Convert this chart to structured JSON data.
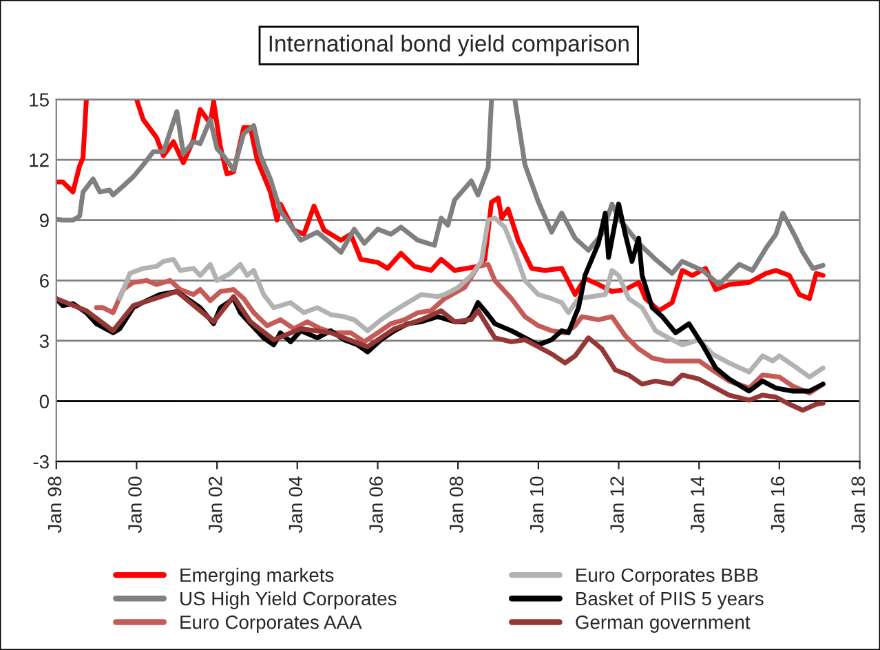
{
  "chart_data": {
    "type": "line",
    "title": "International bond yield comparison",
    "xlim": [
      "1998-01",
      "2018-01"
    ],
    "xticks": [
      {
        "value": "1998-01",
        "label": "Jan 98"
      },
      {
        "value": "2000-01",
        "label": "Jan 00"
      },
      {
        "value": "2002-01",
        "label": "Jan 02"
      },
      {
        "value": "2004-01",
        "label": "Jan 04"
      },
      {
        "value": "2006-01",
        "label": "Jan 06"
      },
      {
        "value": "2008-01",
        "label": "Jan 08"
      },
      {
        "value": "2010-01",
        "label": "Jan 10"
      },
      {
        "value": "2012-01",
        "label": "Jan 12"
      },
      {
        "value": "2014-01",
        "label": "Jan 14"
      },
      {
        "value": "2016-01",
        "label": "Jan 16"
      },
      {
        "value": "2018-01",
        "label": "Jan 18"
      }
    ],
    "ylim": [
      -3,
      15
    ],
    "yticks": [
      -3,
      0,
      3,
      6,
      9,
      12,
      15
    ],
    "grid": "y",
    "legend": "bottom",
    "line_style": "solid",
    "marker": "none",
    "series": [
      {
        "name": "Emerging markets",
        "color": "#ff0000",
        "x": [
          "1998-01",
          "1998-03",
          "1998-06",
          "1998-08",
          "1998-09",
          "1998-10",
          "1999-06",
          "2000-01",
          "2000-03",
          "2000-07",
          "2000-09",
          "2000-12",
          "2001-03",
          "2001-06",
          "2001-08",
          "2001-11",
          "2001-12",
          "2002-02",
          "2002-04",
          "2002-06",
          "2002-09",
          "2002-11",
          "2003-01",
          "2003-05",
          "2003-07",
          "2003-08",
          "2003-12",
          "2004-03",
          "2004-06",
          "2004-09",
          "2005-02",
          "2005-05",
          "2005-08",
          "2006-01",
          "2006-04",
          "2006-08",
          "2006-12",
          "2007-05",
          "2007-08",
          "2007-12",
          "2008-07",
          "2008-09",
          "2008-11",
          "2009-01",
          "2009-02",
          "2009-04",
          "2009-07",
          "2009-11",
          "2010-03",
          "2010-08",
          "2010-12",
          "2011-03",
          "2011-07",
          "2011-11",
          "2012-03",
          "2012-07",
          "2012-09",
          "2013-01",
          "2013-05",
          "2013-08",
          "2013-11",
          "2014-03",
          "2014-06",
          "2014-10",
          "2015-04",
          "2015-09",
          "2015-12",
          "2016-04",
          "2016-07",
          "2016-10",
          "2016-12",
          "2017-02"
        ],
        "values": [
          10.9,
          10.9,
          10.4,
          11.7,
          12.1,
          15,
          null,
          15,
          14.0,
          13.1,
          12.2,
          12.9,
          11.85,
          13.0,
          14.5,
          13.8,
          14.9,
          12.65,
          11.3,
          11.4,
          13.6,
          13.6,
          12.0,
          10.4,
          9.0,
          9.8,
          8.5,
          8.3,
          9.7,
          8.5,
          8.0,
          8.3,
          7.05,
          6.9,
          6.6,
          7.35,
          6.7,
          6.5,
          7.05,
          6.5,
          6.7,
          7.05,
          9.9,
          10.1,
          9.1,
          9.55,
          8.0,
          6.6,
          6.5,
          6.6,
          5.3,
          6.1,
          5.8,
          5.45,
          5.55,
          5.9,
          5.1,
          4.5,
          4.9,
          6.5,
          6.25,
          6.6,
          5.55,
          5.8,
          5.9,
          6.35,
          6.5,
          6.25,
          5.3,
          5.1,
          6.35,
          6.25
        ]
      },
      {
        "name": "US High Yield Corporates",
        "color": "#808080",
        "x": [
          "1998-01",
          "1998-03",
          "1998-06",
          "1998-08",
          "1998-09",
          "1998-12",
          "1999-02",
          "1999-05",
          "1999-06",
          "1999-09",
          "1999-12",
          "2000-03",
          "2000-06",
          "2000-09",
          "2001-01",
          "2001-03",
          "2001-06",
          "2001-08",
          "2001-11",
          "2002-01",
          "2002-03",
          "2002-06",
          "2002-09",
          "2002-12",
          "2003-02",
          "2003-05",
          "2003-08",
          "2003-11",
          "2004-02",
          "2004-07",
          "2004-11",
          "2005-02",
          "2005-06",
          "2005-09",
          "2006-01",
          "2006-05",
          "2006-08",
          "2007-01",
          "2007-06",
          "2007-08",
          "2007-10",
          "2007-12",
          "2008-05",
          "2008-07",
          "2008-10",
          "2008-11",
          "2009-02",
          "2009-06",
          "2009-09",
          "2010-01",
          "2010-05",
          "2010-08",
          "2010-12",
          "2011-04",
          "2011-08",
          "2011-11",
          "2012-01",
          "2012-07",
          "2012-12",
          "2013-05",
          "2013-08",
          "2014-02",
          "2014-07",
          "2015-01",
          "2015-05",
          "2015-09",
          "2015-12",
          "2016-02",
          "2016-06",
          "2016-08",
          "2016-11",
          "2017-02"
        ],
        "values": [
          9.05,
          9.0,
          9.0,
          9.2,
          10.4,
          11.05,
          10.4,
          10.5,
          10.25,
          10.7,
          11.15,
          11.75,
          12.4,
          12.4,
          14.4,
          12.3,
          12.9,
          12.8,
          14.0,
          12.55,
          12.2,
          11.5,
          13.3,
          13.7,
          12.2,
          11.05,
          9.45,
          8.75,
          8.0,
          8.4,
          7.85,
          7.4,
          8.55,
          7.85,
          8.55,
          8.3,
          8.65,
          8.0,
          7.75,
          9.1,
          8.75,
          10.0,
          10.95,
          10.25,
          11.6,
          15,
          null,
          15,
          11.75,
          9.9,
          8.4,
          9.35,
          8.1,
          7.5,
          8.3,
          9.8,
          9.1,
          7.85,
          7.05,
          6.35,
          6.95,
          6.5,
          5.8,
          6.8,
          6.5,
          7.6,
          8.3,
          9.35,
          8.1,
          7.4,
          6.6,
          6.75
        ]
      },
      {
        "name": "Euro Corporates AAA",
        "color": "#c55a56",
        "x": [
          "1999-01",
          "1999-03",
          "1999-06",
          "1999-09",
          "1999-12",
          "2000-04",
          "2000-07",
          "2000-11",
          "2001-02",
          "2001-06",
          "2001-08",
          "2001-11",
          "2002-02",
          "2002-06",
          "2002-09",
          "2002-12",
          "2003-04",
          "2003-08",
          "2003-12",
          "2004-04",
          "2004-08",
          "2004-12",
          "2005-05",
          "2005-09",
          "2006-01",
          "2006-05",
          "2006-09",
          "2007-01",
          "2007-05",
          "2007-09",
          "2008-03",
          "2008-07",
          "2008-10",
          "2008-12",
          "2009-05",
          "2009-09",
          "2010-01",
          "2010-05",
          "2010-09",
          "2010-12",
          "2011-02",
          "2011-07",
          "2011-11",
          "2012-03",
          "2012-07",
          "2012-11",
          "2013-03",
          "2013-07",
          "2014-01",
          "2014-05",
          "2014-10",
          "2015-04",
          "2015-08",
          "2016-01",
          "2016-05",
          "2016-10",
          "2017-02"
        ],
        "values": [
          4.65,
          4.65,
          4.4,
          5.55,
          5.9,
          6.0,
          5.8,
          6.0,
          5.55,
          5.3,
          5.55,
          5.0,
          5.45,
          5.55,
          5.1,
          4.4,
          3.75,
          4.05,
          3.6,
          3.95,
          3.6,
          3.4,
          3.4,
          2.95,
          3.4,
          3.85,
          4.05,
          4.4,
          4.5,
          5.1,
          5.65,
          6.7,
          6.8,
          6.0,
          5.1,
          4.2,
          3.75,
          3.5,
          3.4,
          3.75,
          4.2,
          4.05,
          4.2,
          3.25,
          2.6,
          2.15,
          2.0,
          2.0,
          2.0,
          1.55,
          1.0,
          0.65,
          1.3,
          1.2,
          0.75,
          0.4,
          0.85
        ]
      },
      {
        "name": "Euro Corporates BBB",
        "color": "#b2b2b2",
        "x": [
          "1999-08",
          "1999-11",
          "2000-03",
          "2000-07",
          "2000-09",
          "2000-12",
          "2001-02",
          "2001-06",
          "2001-08",
          "2001-11",
          "2002-01",
          "2002-05",
          "2002-08",
          "2002-10",
          "2002-12",
          "2003-03",
          "2003-06",
          "2003-11",
          "2004-03",
          "2004-07",
          "2004-11",
          "2005-03",
          "2005-06",
          "2005-10",
          "2006-02",
          "2006-06",
          "2006-10",
          "2007-02",
          "2007-07",
          "2007-09",
          "2008-01",
          "2008-05",
          "2008-08",
          "2008-10",
          "2008-12",
          "2009-03",
          "2009-06",
          "2009-09",
          "2010-01",
          "2010-05",
          "2010-08",
          "2010-10",
          "2011-01",
          "2011-05",
          "2011-09",
          "2011-11",
          "2012-01",
          "2012-04",
          "2012-08",
          "2012-12",
          "2013-05",
          "2013-08",
          "2014-01",
          "2014-05",
          "2014-10",
          "2015-04",
          "2015-08",
          "2015-11",
          "2016-01",
          "2016-05",
          "2016-10",
          "2017-02"
        ],
        "values": [
          5.1,
          6.35,
          6.6,
          6.7,
          6.95,
          7.05,
          6.5,
          6.6,
          6.25,
          6.8,
          6.0,
          6.35,
          6.8,
          6.25,
          6.5,
          5.3,
          4.65,
          4.9,
          4.4,
          4.65,
          4.3,
          4.2,
          4.05,
          3.5,
          4.05,
          4.5,
          4.9,
          5.3,
          5.2,
          5.3,
          5.65,
          6.25,
          6.95,
          9.0,
          9.1,
          8.65,
          7.4,
          6.0,
          5.3,
          5.1,
          4.9,
          4.4,
          5.1,
          5.2,
          5.3,
          6.5,
          6.25,
          5.1,
          4.65,
          3.5,
          3.05,
          2.8,
          3.05,
          2.35,
          1.9,
          1.45,
          2.25,
          2.0,
          2.25,
          1.8,
          1.2,
          1.65
        ]
      },
      {
        "name": "Basket of PIIS 5 years",
        "color": "#000000",
        "x": [
          "1998-01",
          "1998-03",
          "1998-06",
          "1998-10",
          "1999-01",
          "1999-06",
          "1999-08",
          "1999-12",
          "2000-04",
          "2000-08",
          "2001-01",
          "2001-05",
          "2001-08",
          "2001-12",
          "2002-02",
          "2002-06",
          "2002-08",
          "2002-11",
          "2003-03",
          "2003-06",
          "2003-08",
          "2003-11",
          "2004-02",
          "2004-07",
          "2004-11",
          "2005-03",
          "2005-07",
          "2005-10",
          "2006-02",
          "2006-06",
          "2006-10",
          "2007-02",
          "2007-07",
          "2007-12",
          "2008-03",
          "2008-05",
          "2008-07",
          "2008-10",
          "2008-12",
          "2009-05",
          "2009-09",
          "2010-01",
          "2010-05",
          "2010-08",
          "2010-10",
          "2011-01",
          "2011-03",
          "2011-07",
          "2011-09",
          "2011-10",
          "2012-01",
          "2012-03",
          "2012-05",
          "2012-07",
          "2012-08",
          "2012-11",
          "2013-02",
          "2013-06",
          "2013-10",
          "2014-02",
          "2014-06",
          "2014-10",
          "2015-04",
          "2015-08",
          "2015-12",
          "2016-05",
          "2016-10",
          "2017-02"
        ],
        "values": [
          5.1,
          4.75,
          4.85,
          4.4,
          3.85,
          3.4,
          3.6,
          4.65,
          5.0,
          5.3,
          5.45,
          5.0,
          4.65,
          3.85,
          4.65,
          5.1,
          4.4,
          3.85,
          3.15,
          2.8,
          3.4,
          2.95,
          3.5,
          3.15,
          3.5,
          3.05,
          2.8,
          2.45,
          3.05,
          3.5,
          3.85,
          3.95,
          4.2,
          3.95,
          3.95,
          4.2,
          4.9,
          4.3,
          3.85,
          3.5,
          3.15,
          2.8,
          3.05,
          3.5,
          3.4,
          4.65,
          6.25,
          7.85,
          9.35,
          7.15,
          9.8,
          8.3,
          6.95,
          8.1,
          6.25,
          4.65,
          4.2,
          3.4,
          3.85,
          2.8,
          1.65,
          1.1,
          0.5,
          1.0,
          0.65,
          0.5,
          0.5,
          0.85
        ]
      },
      {
        "name": "German government",
        "color": "#953735",
        "x": [
          "1998-01",
          "1998-10",
          "1999-06",
          "1999-12",
          "2001-01",
          "2001-12",
          "2002-06",
          "2002-11",
          "2003-06",
          "2004-02",
          "2004-11",
          "2005-10",
          "2006-06",
          "2007-02",
          "2007-08",
          "2007-12",
          "2008-05",
          "2008-07",
          "2008-12",
          "2009-05",
          "2009-09",
          "2010-01",
          "2010-05",
          "2010-09",
          "2010-12",
          "2011-04",
          "2011-08",
          "2011-12",
          "2012-04",
          "2012-08",
          "2012-12",
          "2013-05",
          "2013-08",
          "2014-01",
          "2014-05",
          "2014-10",
          "2015-04",
          "2015-08",
          "2015-12",
          "2016-04",
          "2016-08",
          "2016-12",
          "2017-02"
        ],
        "values": [
          5.1,
          4.5,
          3.5,
          4.75,
          5.45,
          3.95,
          5.2,
          3.95,
          3.05,
          3.6,
          3.4,
          2.7,
          3.6,
          4.05,
          4.5,
          3.95,
          4.05,
          4.5,
          3.15,
          2.95,
          3.05,
          2.7,
          2.35,
          1.9,
          2.25,
          3.15,
          2.6,
          1.55,
          1.3,
          0.85,
          1.0,
          0.85,
          1.3,
          1.1,
          0.75,
          0.3,
          0.05,
          0.3,
          0.2,
          -0.15,
          -0.45,
          -0.15,
          -0.1
        ]
      }
    ]
  }
}
